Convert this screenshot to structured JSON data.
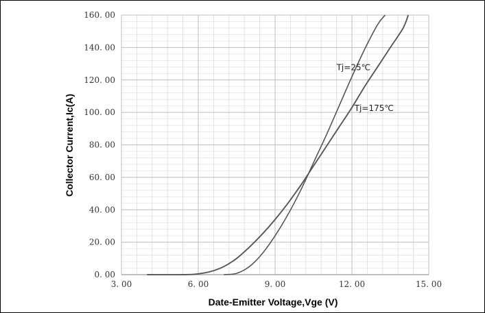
{
  "chart_data": {
    "type": "line",
    "title": "",
    "xlabel": "Date-Emitter Voltage,Vge (V)",
    "ylabel": "Collector Current,Ic(A)",
    "xlim": [
      3,
      15
    ],
    "ylim": [
      0,
      160
    ],
    "x_ticks": [
      "3. 00",
      "6. 00",
      "9. 00",
      "12. 00",
      "15. 00"
    ],
    "y_ticks": [
      "0. 00",
      "20. 00",
      "40. 00",
      "60. 00",
      "80. 00",
      "100. 00",
      "120. 00",
      "140. 00",
      "160. 00"
    ],
    "grid": true,
    "line_color": "#555555",
    "series": [
      {
        "name": "Tj=25℃",
        "x": [
          7.0,
          7.5,
          8.0,
          8.5,
          9.0,
          9.5,
          10.0,
          10.5,
          11.0,
          11.5,
          12.0,
          12.5,
          13.0,
          13.3
        ],
        "y": [
          0,
          0.8,
          5,
          13,
          24,
          37,
          52,
          69,
          86,
          104,
          122,
          139,
          154,
          160
        ]
      },
      {
        "name": "Tj=175℃",
        "x": [
          4.0,
          5.5,
          6.0,
          6.5,
          7.0,
          7.5,
          8.0,
          8.5,
          9.0,
          9.5,
          10.0,
          10.5,
          11.0,
          11.5,
          12.0,
          12.5,
          13.0,
          13.5,
          14.0,
          14.2
        ],
        "y": [
          0,
          0,
          0.5,
          2,
          5,
          10,
          17,
          25,
          34,
          44,
          55,
          67,
          79,
          91,
          103,
          116,
          128,
          140,
          152,
          160
        ]
      }
    ],
    "annotations": [
      {
        "text": "Tj=25℃",
        "x": 11.4,
        "y": 126
      },
      {
        "text": "Tj=175℃",
        "x": 12.1,
        "y": 101
      }
    ]
  }
}
